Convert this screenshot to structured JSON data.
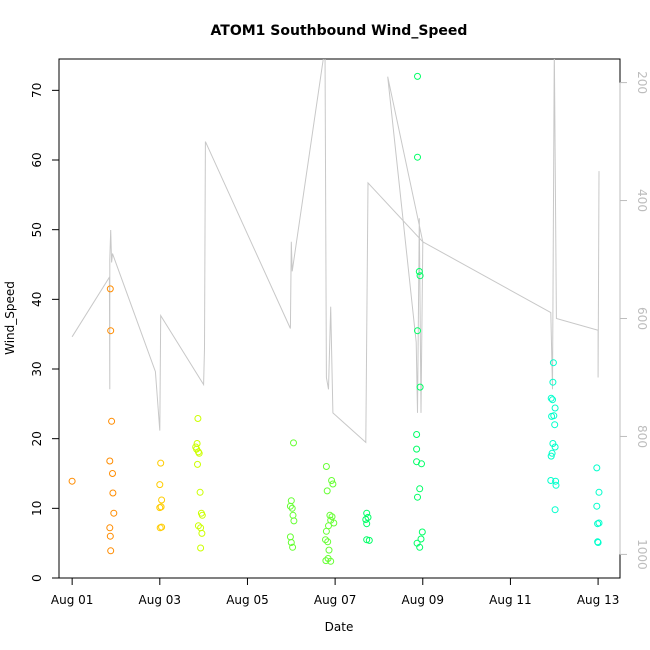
{
  "chart_data": {
    "type": "scatter",
    "title": "ATOM1 Southbound Wind_Speed",
    "xlabel": "Date",
    "ylabel": "Wind_Speed",
    "xlim": [
      -0.3,
      12.5
    ],
    "ylim": [
      0,
      74.5
    ],
    "x_ticks": [
      {
        "value": 0,
        "label": "Aug 01"
      },
      {
        "value": 2,
        "label": "Aug 03"
      },
      {
        "value": 4,
        "label": "Aug 05"
      },
      {
        "value": 6,
        "label": "Aug 07"
      },
      {
        "value": 8,
        "label": "Aug 09"
      },
      {
        "value": 10,
        "label": "Aug 11"
      },
      {
        "value": 12,
        "label": "Aug 13"
      }
    ],
    "y_ticks": [
      0,
      10,
      20,
      30,
      40,
      50,
      60,
      70
    ],
    "right_axis": {
      "lim": [
        1040,
        160
      ],
      "ticks": [
        200,
        400,
        600,
        800,
        1000
      ],
      "color": "#bdbdbd"
    },
    "marker_colors": [
      "#ff8c00",
      "#ffcc00",
      "#ccff00",
      "#66ff33",
      "#00ff66",
      "#00ffcc"
    ],
    "points": [
      [
        0.0,
        13.9,
        0
      ],
      [
        0.87,
        41.5,
        0
      ],
      [
        0.88,
        35.5,
        0
      ],
      [
        0.9,
        22.5,
        0
      ],
      [
        0.86,
        16.8,
        0
      ],
      [
        0.92,
        15.0,
        0
      ],
      [
        0.93,
        12.2,
        0
      ],
      [
        0.95,
        9.3,
        0
      ],
      [
        0.86,
        7.2,
        0
      ],
      [
        0.87,
        6.0,
        0
      ],
      [
        0.88,
        3.9,
        0
      ],
      [
        2.02,
        16.5,
        1
      ],
      [
        2.0,
        13.4,
        1
      ],
      [
        2.04,
        11.2,
        1
      ],
      [
        2.0,
        10.1,
        1
      ],
      [
        2.03,
        10.2,
        1
      ],
      [
        2.01,
        7.2,
        1
      ],
      [
        2.04,
        7.3,
        1
      ],
      [
        2.82,
        18.8,
        2
      ],
      [
        2.85,
        19.3,
        2
      ],
      [
        2.88,
        18.1,
        2
      ],
      [
        2.9,
        17.9,
        2
      ],
      [
        2.84,
        18.5,
        2
      ],
      [
        2.86,
        16.3,
        2
      ],
      [
        2.92,
        12.3,
        2
      ],
      [
        2.95,
        9.3,
        2
      ],
      [
        2.97,
        9.0,
        2
      ],
      [
        2.88,
        7.5,
        2
      ],
      [
        2.93,
        7.2,
        2
      ],
      [
        2.96,
        6.4,
        2
      ],
      [
        2.93,
        4.3,
        2
      ],
      [
        2.87,
        22.9,
        2
      ],
      [
        5.05,
        19.4,
        3
      ],
      [
        5.0,
        11.1,
        3
      ],
      [
        5.02,
        10.0,
        3
      ],
      [
        4.98,
        10.3,
        3
      ],
      [
        5.04,
        9.0,
        3
      ],
      [
        5.06,
        8.2,
        3
      ],
      [
        4.98,
        5.9,
        3
      ],
      [
        5.0,
        5.1,
        3
      ],
      [
        5.03,
        4.4,
        3
      ],
      [
        5.8,
        16.0,
        3
      ],
      [
        5.82,
        12.5,
        3
      ],
      [
        5.92,
        14.0,
        3
      ],
      [
        5.95,
        13.5,
        3
      ],
      [
        5.88,
        9.0,
        3
      ],
      [
        5.93,
        8.8,
        3
      ],
      [
        5.9,
        8.3,
        3
      ],
      [
        5.97,
        7.9,
        3
      ],
      [
        5.85,
        7.5,
        3
      ],
      [
        5.8,
        6.7,
        3
      ],
      [
        5.78,
        5.5,
        3
      ],
      [
        5.83,
        5.2,
        3
      ],
      [
        5.86,
        4.0,
        3
      ],
      [
        5.79,
        2.5,
        3
      ],
      [
        5.9,
        2.4,
        3
      ],
      [
        5.84,
        2.8,
        3
      ],
      [
        6.72,
        9.3,
        4
      ],
      [
        6.7,
        8.4,
        4
      ],
      [
        6.75,
        8.7,
        4
      ],
      [
        6.72,
        7.8,
        4
      ],
      [
        6.72,
        5.5,
        4
      ],
      [
        6.78,
        5.4,
        4
      ],
      [
        7.88,
        72.0,
        4
      ],
      [
        7.88,
        60.4,
        4
      ],
      [
        7.92,
        44.0,
        4
      ],
      [
        7.94,
        43.4,
        4
      ],
      [
        7.88,
        35.5,
        4
      ],
      [
        7.94,
        27.4,
        4
      ],
      [
        7.86,
        20.6,
        4
      ],
      [
        7.86,
        18.5,
        4
      ],
      [
        7.86,
        16.7,
        4
      ],
      [
        7.97,
        16.4,
        4
      ],
      [
        7.93,
        12.8,
        4
      ],
      [
        7.88,
        11.6,
        4
      ],
      [
        7.99,
        6.6,
        4
      ],
      [
        7.96,
        5.6,
        4
      ],
      [
        7.87,
        5.0,
        4
      ],
      [
        7.93,
        4.4,
        4
      ],
      [
        10.98,
        30.9,
        5
      ],
      [
        10.97,
        28.1,
        5
      ],
      [
        10.93,
        25.8,
        5
      ],
      [
        10.96,
        25.6,
        5
      ],
      [
        11.02,
        24.4,
        5
      ],
      [
        10.99,
        23.3,
        5
      ],
      [
        11.01,
        22.0,
        5
      ],
      [
        10.94,
        23.2,
        5
      ],
      [
        10.97,
        19.3,
        5
      ],
      [
        11.02,
        18.8,
        5
      ],
      [
        10.93,
        17.5,
        5
      ],
      [
        10.95,
        17.9,
        5
      ],
      [
        10.92,
        14.0,
        5
      ],
      [
        11.03,
        13.9,
        5
      ],
      [
        11.04,
        13.3,
        5
      ],
      [
        11.02,
        9.8,
        5
      ],
      [
        11.97,
        15.8,
        5
      ],
      [
        12.02,
        12.3,
        5
      ],
      [
        11.97,
        10.3,
        5
      ],
      [
        11.99,
        7.8,
        5
      ],
      [
        12.02,
        7.9,
        5
      ],
      [
        11.99,
        5.2,
        5
      ],
      [
        12.0,
        5.1,
        5
      ]
    ],
    "secondary_line": [
      [
        0.0,
        631
      ],
      [
        0.85,
        530
      ],
      [
        0.86,
        720
      ],
      [
        0.86,
        500
      ],
      [
        0.88,
        450
      ],
      [
        0.9,
        505
      ],
      [
        0.92,
        490
      ],
      [
        1.9,
        690
      ],
      [
        2.0,
        790
      ],
      [
        2.02,
        595
      ],
      [
        3.0,
        712
      ],
      [
        3.02,
        650
      ],
      [
        3.04,
        300
      ],
      [
        4.98,
        617
      ],
      [
        5.0,
        470
      ],
      [
        5.02,
        520
      ],
      [
        5.77,
        140
      ],
      [
        5.8,
        700
      ],
      [
        5.85,
        720
      ],
      [
        5.9,
        580
      ],
      [
        5.95,
        760
      ],
      [
        6.7,
        810
      ],
      [
        6.75,
        370
      ],
      [
        8.0,
        470
      ],
      [
        7.2,
        190
      ],
      [
        7.85,
        640
      ],
      [
        7.88,
        760
      ],
      [
        7.92,
        430
      ],
      [
        7.96,
        760
      ],
      [
        8.0,
        470
      ],
      [
        10.92,
        590
      ],
      [
        10.96,
        720
      ],
      [
        11.0,
        140
      ],
      [
        11.05,
        600
      ],
      [
        12.0,
        620
      ],
      [
        12.0,
        700
      ],
      [
        12.02,
        350
      ]
    ]
  }
}
